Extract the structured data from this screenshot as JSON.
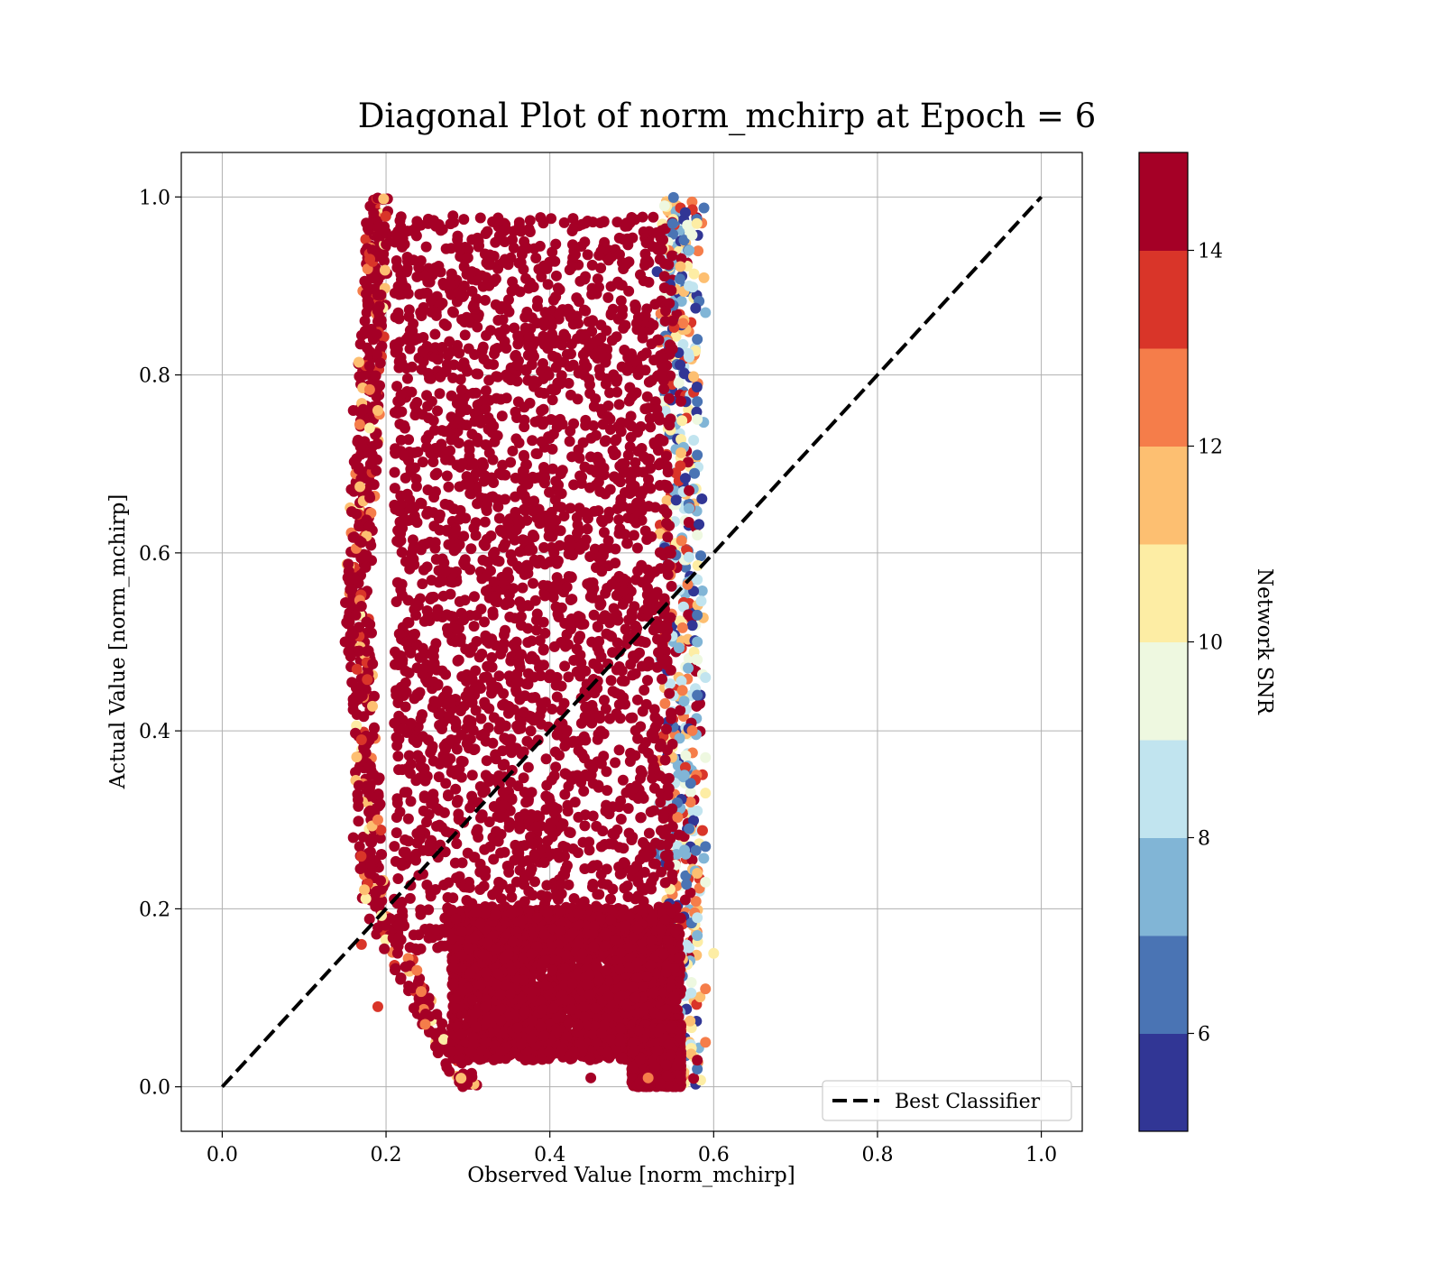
{
  "chart_data": {
    "type": "scatter",
    "title": "Diagonal Plot of norm_mchirp at Epoch = 6",
    "xlabel": "Observed Value [norm_mchirp]",
    "ylabel": "Actual Value [norm_mchirp]",
    "xlim": [
      -0.05,
      1.05
    ],
    "ylim": [
      -0.05,
      1.05
    ],
    "x_ticks": [
      "0.0",
      "0.2",
      "0.4",
      "0.6",
      "0.8",
      "1.0"
    ],
    "y_ticks": [
      "0.0",
      "0.2",
      "0.4",
      "0.6",
      "0.8",
      "1.0"
    ],
    "grid": true,
    "reference_line": {
      "name": "Best Classifier",
      "x": [
        0.0,
        1.0
      ],
      "y": [
        0.0,
        1.0
      ],
      "style": "dashed",
      "color": "#000000"
    },
    "legend": {
      "position": "lower-right",
      "entries": [
        "Best Classifier"
      ]
    },
    "colorbar": {
      "label": "Network SNR",
      "min": 5,
      "max": 15,
      "ticks": [
        "6",
        "8",
        "10",
        "12",
        "14"
      ],
      "colors": [
        "#313695",
        "#4a74b4",
        "#81b5d6",
        "#c1e4ef",
        "#eef8e0",
        "#fdeda4",
        "#fdbf71",
        "#f57d4a",
        "#d93529",
        "#a50026"
      ]
    },
    "point_cloud": {
      "description_of_region": "dense points for observed 0.2-0.55 across actual 0.0-1.0",
      "dominant_snr": 15,
      "regions": [
        {
          "observed_min": 0.21,
          "observed_max": 0.55,
          "actual_min": 0.15,
          "actual_max": 0.98,
          "snr": 15
        },
        {
          "observed_min": 0.28,
          "observed_max": 0.56,
          "actual_min": 0.03,
          "actual_max": 0.2,
          "snr": 15
        },
        {
          "observed_min": 0.5,
          "observed_max": 0.56,
          "actual_min": 0.0,
          "actual_max": 0.07,
          "snr": 14
        }
      ],
      "edge_points": [
        {
          "x": 0.16,
          "y": 0.76,
          "snr": 14
        },
        {
          "x": 0.15,
          "y": 0.5,
          "snr": 15
        },
        {
          "x": 0.16,
          "y": 0.43,
          "snr": 15
        },
        {
          "x": 0.17,
          "y": 0.39,
          "snr": 13
        },
        {
          "x": 0.16,
          "y": 0.28,
          "snr": 14
        },
        {
          "x": 0.17,
          "y": 0.16,
          "snr": 13
        },
        {
          "x": 0.19,
          "y": 0.09,
          "snr": 13
        },
        {
          "x": 0.18,
          "y": 0.81,
          "snr": 15
        },
        {
          "x": 0.19,
          "y": 0.86,
          "snr": 15
        },
        {
          "x": 0.2,
          "y": 0.96,
          "snr": 14
        },
        {
          "x": 0.18,
          "y": 0.63,
          "snr": 15
        },
        {
          "x": 0.17,
          "y": 0.54,
          "snr": 14
        },
        {
          "x": 0.19,
          "y": 0.76,
          "snr": 11
        },
        {
          "x": 0.19,
          "y": 0.3,
          "snr": 12
        },
        {
          "x": 0.18,
          "y": 0.24,
          "snr": 15
        },
        {
          "x": 0.26,
          "y": 0.06,
          "snr": 15
        },
        {
          "x": 0.28,
          "y": 0.04,
          "snr": 15
        },
        {
          "x": 0.34,
          "y": 0.04,
          "snr": 14
        },
        {
          "x": 0.45,
          "y": 0.01,
          "snr": 15
        },
        {
          "x": 0.51,
          "y": 0.005,
          "snr": 14
        },
        {
          "x": 0.52,
          "y": 0.01,
          "snr": 12
        },
        {
          "x": 0.54,
          "y": 0.99,
          "snr": 9
        },
        {
          "x": 0.55,
          "y": 0.97,
          "snr": 6
        },
        {
          "x": 0.57,
          "y": 0.94,
          "snr": 7
        },
        {
          "x": 0.58,
          "y": 0.84,
          "snr": 6
        },
        {
          "x": 0.59,
          "y": 0.87,
          "snr": 7
        },
        {
          "x": 0.57,
          "y": 0.9,
          "snr": 8
        },
        {
          "x": 0.57,
          "y": 0.82,
          "snr": 8
        },
        {
          "x": 0.58,
          "y": 0.77,
          "snr": 6
        },
        {
          "x": 0.58,
          "y": 0.75,
          "snr": 9
        },
        {
          "x": 0.58,
          "y": 0.71,
          "snr": 6
        },
        {
          "x": 0.57,
          "y": 0.67,
          "snr": 14
        },
        {
          "x": 0.57,
          "y": 0.65,
          "snr": 7
        },
        {
          "x": 0.58,
          "y": 0.62,
          "snr": 9
        },
        {
          "x": 0.58,
          "y": 0.57,
          "snr": 8
        },
        {
          "x": 0.58,
          "y": 0.53,
          "snr": 6
        },
        {
          "x": 0.58,
          "y": 0.5,
          "snr": 7
        },
        {
          "x": 0.58,
          "y": 0.48,
          "snr": 9
        },
        {
          "x": 0.59,
          "y": 0.46,
          "snr": 8
        },
        {
          "x": 0.58,
          "y": 0.44,
          "snr": 6
        },
        {
          "x": 0.59,
          "y": 0.37,
          "snr": 9
        },
        {
          "x": 0.59,
          "y": 0.33,
          "snr": 10
        },
        {
          "x": 0.58,
          "y": 0.31,
          "snr": 8
        },
        {
          "x": 0.57,
          "y": 0.29,
          "snr": 6
        },
        {
          "x": 0.59,
          "y": 0.27,
          "snr": 6
        },
        {
          "x": 0.58,
          "y": 0.24,
          "snr": 11
        },
        {
          "x": 0.59,
          "y": 0.23,
          "snr": 9
        },
        {
          "x": 0.58,
          "y": 0.19,
          "snr": 8
        },
        {
          "x": 0.58,
          "y": 0.17,
          "snr": 7
        },
        {
          "x": 0.6,
          "y": 0.15,
          "snr": 10
        },
        {
          "x": 0.59,
          "y": 0.11,
          "snr": 12
        },
        {
          "x": 0.59,
          "y": 0.05,
          "snr": 12
        },
        {
          "x": 0.58,
          "y": 0.02,
          "snr": 6
        },
        {
          "x": 0.58,
          "y": 0.03,
          "snr": 15
        }
      ]
    }
  }
}
